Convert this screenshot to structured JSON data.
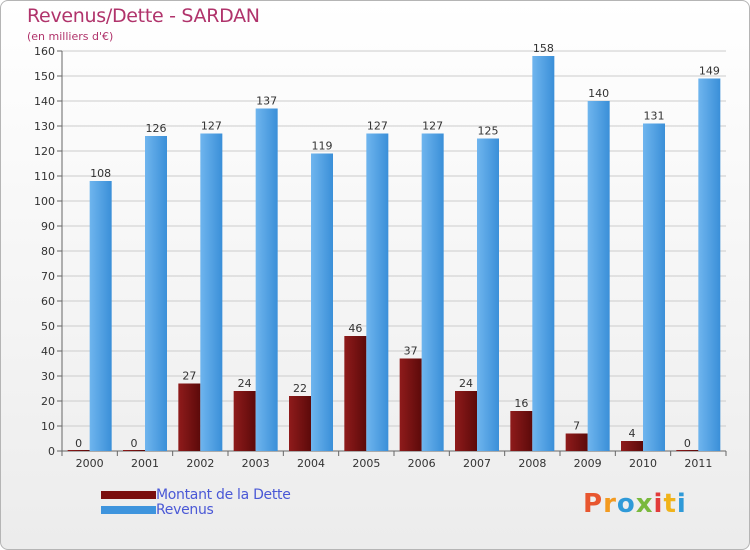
{
  "header": {
    "title": "Revenus/Dette - SARDAN",
    "subtitle": "(en milliers d'€)"
  },
  "brand": {
    "letters": [
      "P",
      "r",
      "o",
      "x",
      "i",
      "t",
      "i"
    ],
    "colors": [
      "#e8562f",
      "#f39a1f",
      "#2f9ad8",
      "#7ab93d",
      "#e23b3b",
      "#f0b31a",
      "#2f9ad8"
    ]
  },
  "legend": {
    "items": [
      {
        "label": "Montant de la Dette",
        "color": "#7a0f0f"
      },
      {
        "label": "Revenus",
        "color": "#3e94dd"
      }
    ]
  },
  "chart_data": {
    "type": "bar",
    "title": "Revenus/Dette - SARDAN",
    "subtitle": "(en milliers d'€)",
    "categories": [
      "2000",
      "2001",
      "2002",
      "2003",
      "2004",
      "2005",
      "2006",
      "2007",
      "2008",
      "2009",
      "2010",
      "2011"
    ],
    "series": [
      {
        "name": "Montant de la Dette",
        "color": "#7a0f0f",
        "values": [
          0,
          0,
          27,
          24,
          22,
          46,
          37,
          24,
          16,
          7,
          4,
          0
        ]
      },
      {
        "name": "Revenus",
        "color": "#3e94dd",
        "values": [
          108,
          126,
          127,
          137,
          119,
          127,
          127,
          125,
          158,
          140,
          131,
          149
        ]
      }
    ],
    "ylim": [
      0,
      160
    ],
    "yticks": [
      0,
      10,
      20,
      30,
      40,
      50,
      60,
      70,
      80,
      90,
      100,
      110,
      120,
      130,
      140,
      150,
      160
    ],
    "grid": true,
    "legend_position": "bottom-left"
  }
}
